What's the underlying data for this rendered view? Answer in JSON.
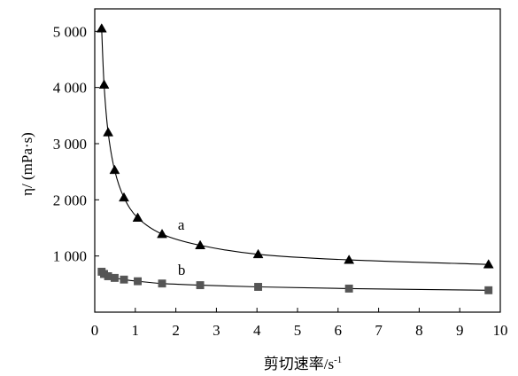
{
  "chart_data": {
    "type": "line",
    "xlabel": "剪切速率/s",
    "xlabel_superscript": "-1",
    "ylabel": "η/ (mPa·s)",
    "xlim": [
      0,
      10
    ],
    "ylim": [
      0,
      5400
    ],
    "x_ticks": [
      0,
      1,
      2,
      3,
      4,
      5,
      6,
      7,
      8,
      9,
      10
    ],
    "x_tick_labels": [
      "0",
      "1",
      "2",
      "3",
      "4",
      "5",
      "6",
      "7",
      "8",
      "9",
      "10"
    ],
    "y_ticks": [
      1000,
      2000,
      3000,
      4000,
      5000
    ],
    "y_tick_labels": [
      "1 000",
      "2 000",
      "3 000",
      "4 000",
      "5 000"
    ],
    "grid": false,
    "series": [
      {
        "name": "a",
        "marker": "triangle",
        "color": "#000000",
        "x": [
          0.17,
          0.23,
          0.33,
          0.49,
          0.72,
          1.06,
          1.66,
          2.6,
          4.03,
          6.27,
          9.71
        ],
        "y": [
          5050,
          4050,
          3200,
          2530,
          2040,
          1680,
          1390,
          1190,
          1030,
          930,
          850
        ]
      },
      {
        "name": "b",
        "marker": "square",
        "color": "#555555",
        "x": [
          0.17,
          0.23,
          0.33,
          0.49,
          0.72,
          1.06,
          1.66,
          2.6,
          4.03,
          6.27,
          9.71
        ],
        "y": [
          720,
          680,
          640,
          610,
          580,
          550,
          510,
          480,
          450,
          420,
          390
        ]
      }
    ]
  }
}
